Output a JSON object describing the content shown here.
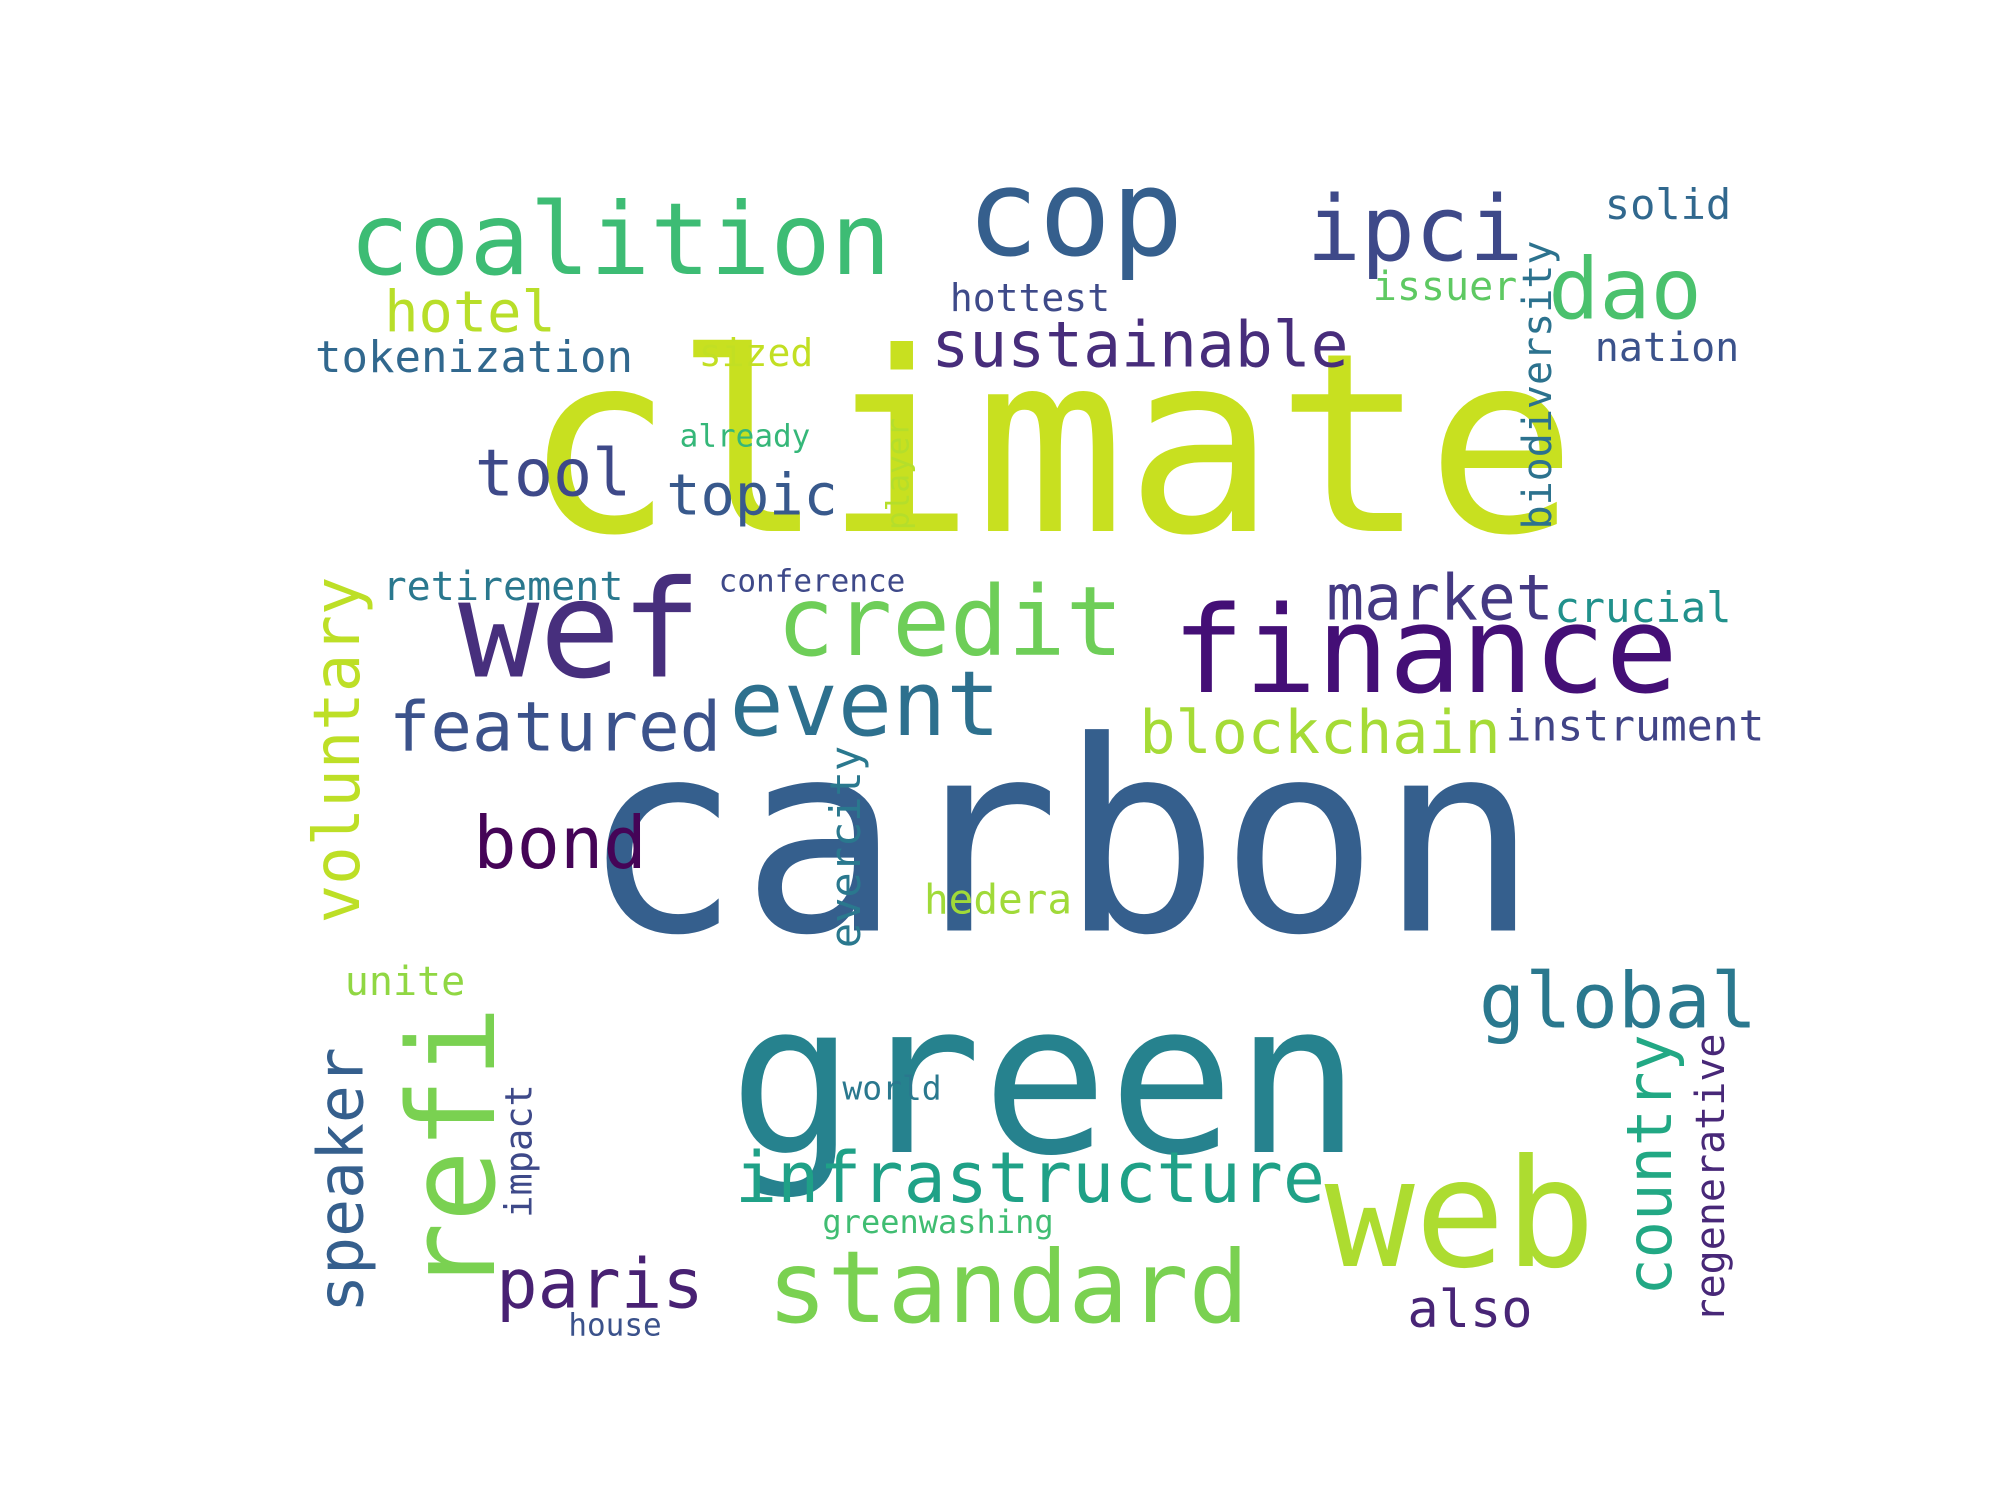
{
  "words": [
    {
      "id": "climate",
      "text": "climate",
      "color": "#c8e020"
    },
    {
      "id": "carbon",
      "text": "carbon",
      "color": "#355f8d"
    },
    {
      "id": "green",
      "text": "green",
      "color": "#26828e"
    },
    {
      "id": "cop",
      "text": "cop",
      "color": "#355f8d"
    },
    {
      "id": "coalition",
      "text": "coalition",
      "color": "#3dbc74"
    },
    {
      "id": "ipci",
      "text": "ipci",
      "color": "#3e4989"
    },
    {
      "id": "dao",
      "text": "dao",
      "color": "#4ac16d"
    },
    {
      "id": "solid",
      "text": "solid",
      "color": "#31688e"
    },
    {
      "id": "hotel",
      "text": "hotel",
      "color": "#b8de29"
    },
    {
      "id": "hottest",
      "text": "hottest",
      "color": "#3e4a89"
    },
    {
      "id": "issuer",
      "text": "issuer",
      "color": "#5ec962"
    },
    {
      "id": "sustainable",
      "text": "sustainable",
      "color": "#472d7b"
    },
    {
      "id": "tokenization",
      "text": "tokenization",
      "color": "#31688e"
    },
    {
      "id": "sized",
      "text": "sized",
      "color": "#c2df23"
    },
    {
      "id": "nation",
      "text": "nation",
      "color": "#3b528b"
    },
    {
      "id": "biodiversity",
      "text": "biodiversity",
      "color": "#2c728e"
    },
    {
      "id": "already",
      "text": "already",
      "color": "#35b779"
    },
    {
      "id": "player",
      "text": "player",
      "color": "#b5de2b"
    },
    {
      "id": "tool",
      "text": "tool",
      "color": "#3e4989"
    },
    {
      "id": "topic",
      "text": "topic",
      "color": "#38598c"
    },
    {
      "id": "wef",
      "text": "wef",
      "color": "#472f7d"
    },
    {
      "id": "credit",
      "text": "credit",
      "color": "#6ece58"
    },
    {
      "id": "finance",
      "text": "finance",
      "color": "#440f76"
    },
    {
      "id": "market",
      "text": "market",
      "color": "#443983"
    },
    {
      "id": "crucial",
      "text": "crucial",
      "color": "#21918c"
    },
    {
      "id": "retirement",
      "text": "retirement",
      "color": "#2a788e"
    },
    {
      "id": "conference",
      "text": "conference",
      "color": "#3e4989"
    },
    {
      "id": "voluntary",
      "text": "voluntary",
      "color": "#bddf26"
    },
    {
      "id": "event",
      "text": "event",
      "color": "#2d708e"
    },
    {
      "id": "featured",
      "text": "featured",
      "color": "#3b528b"
    },
    {
      "id": "blockchain",
      "text": "blockchain",
      "color": "#a5db36"
    },
    {
      "id": "instrument",
      "text": "instrument",
      "color": "#414487"
    },
    {
      "id": "evercity",
      "text": "evercity",
      "color": "#2a788e"
    },
    {
      "id": "bond",
      "text": "bond",
      "color": "#450457"
    },
    {
      "id": "hedera",
      "text": "hedera",
      "color": "#a0da39"
    },
    {
      "id": "unite",
      "text": "unite",
      "color": "#90d743"
    },
    {
      "id": "global",
      "text": "global",
      "color": "#2a788e"
    },
    {
      "id": "speaker",
      "text": "speaker",
      "color": "#355f8d"
    },
    {
      "id": "refi",
      "text": "refi",
      "color": "#7ad151"
    },
    {
      "id": "world",
      "text": "world",
      "color": "#2a788e"
    },
    {
      "id": "impact",
      "text": "impact",
      "color": "#3e4989"
    },
    {
      "id": "country",
      "text": "country",
      "color": "#22a884"
    },
    {
      "id": "regenerative",
      "text": "regenerative",
      "color": "#482878"
    },
    {
      "id": "infrastructure",
      "text": "infrastructure",
      "color": "#1fa187"
    },
    {
      "id": "web",
      "text": "web",
      "color": "#addc30"
    },
    {
      "id": "greenwashing",
      "text": "greenwashing",
      "color": "#40bd72"
    },
    {
      "id": "standard",
      "text": "standard",
      "color": "#7ad151"
    },
    {
      "id": "paris",
      "text": "paris",
      "color": "#482173"
    },
    {
      "id": "also",
      "text": "also",
      "color": "#482576"
    },
    {
      "id": "house",
      "text": "house",
      "color": "#3b528b"
    }
  ]
}
